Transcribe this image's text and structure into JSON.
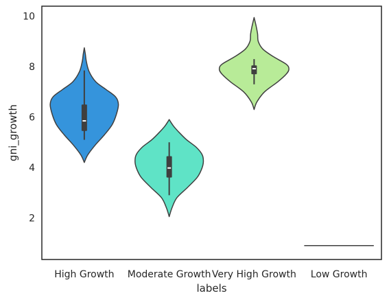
{
  "chart_data": {
    "type": "violin",
    "xlabel": "labels",
    "ylabel": "gni_growth",
    "ylim": [
      0.35,
      10.4
    ],
    "yticks": [
      2,
      4,
      6,
      8,
      10
    ],
    "categories": [
      "High Growth",
      "Moderate Growth",
      "Very High Growth",
      "Low Growth"
    ],
    "colors": [
      "#3594dc",
      "#5fe3c6",
      "#b8eb98",
      "#e8716c"
    ],
    "violins": [
      {
        "category": "High Growth",
        "min": 4.2,
        "max": 8.75,
        "whisker_low": 5.1,
        "q1": 5.45,
        "median": 5.85,
        "q3": 6.5,
        "whisker_high": 7.85,
        "profile": [
          [
            4.2,
            0.0
          ],
          [
            4.5,
            0.1
          ],
          [
            4.9,
            0.32
          ],
          [
            5.3,
            0.58
          ],
          [
            5.7,
            0.8
          ],
          [
            6.1,
            0.92
          ],
          [
            6.5,
            0.98
          ],
          [
            6.8,
            0.9
          ],
          [
            7.1,
            0.62
          ],
          [
            7.4,
            0.33
          ],
          [
            7.8,
            0.14
          ],
          [
            8.2,
            0.06
          ],
          [
            8.5,
            0.03
          ],
          [
            8.75,
            0.0
          ]
        ]
      },
      {
        "category": "Moderate Growth",
        "min": 2.05,
        "max": 5.9,
        "whisker_low": 2.9,
        "q1": 3.6,
        "median": 3.98,
        "q3": 4.45,
        "whisker_high": 5.0,
        "profile": [
          [
            2.05,
            0.0
          ],
          [
            2.4,
            0.08
          ],
          [
            2.8,
            0.22
          ],
          [
            3.2,
            0.52
          ],
          [
            3.6,
            0.8
          ],
          [
            3.9,
            0.92
          ],
          [
            4.2,
            0.98
          ],
          [
            4.5,
            0.95
          ],
          [
            4.8,
            0.78
          ],
          [
            5.1,
            0.5
          ],
          [
            5.4,
            0.28
          ],
          [
            5.65,
            0.12
          ],
          [
            5.9,
            0.0
          ]
        ]
      },
      {
        "category": "Very High Growth",
        "min": 6.3,
        "max": 9.95,
        "whisker_low": 7.3,
        "q1": 7.7,
        "median": 7.92,
        "q3": 8.05,
        "whisker_high": 8.3,
        "profile": [
          [
            6.3,
            0.0
          ],
          [
            6.6,
            0.08
          ],
          [
            7.0,
            0.3
          ],
          [
            7.4,
            0.68
          ],
          [
            7.7,
            0.92
          ],
          [
            7.9,
            1.0
          ],
          [
            8.1,
            0.92
          ],
          [
            8.4,
            0.55
          ],
          [
            8.7,
            0.25
          ],
          [
            9.0,
            0.12
          ],
          [
            9.3,
            0.1
          ],
          [
            9.6,
            0.06
          ],
          [
            9.95,
            0.0
          ]
        ]
      },
      {
        "category": "Low Growth",
        "value": 0.9,
        "degenerate": true
      }
    ]
  }
}
